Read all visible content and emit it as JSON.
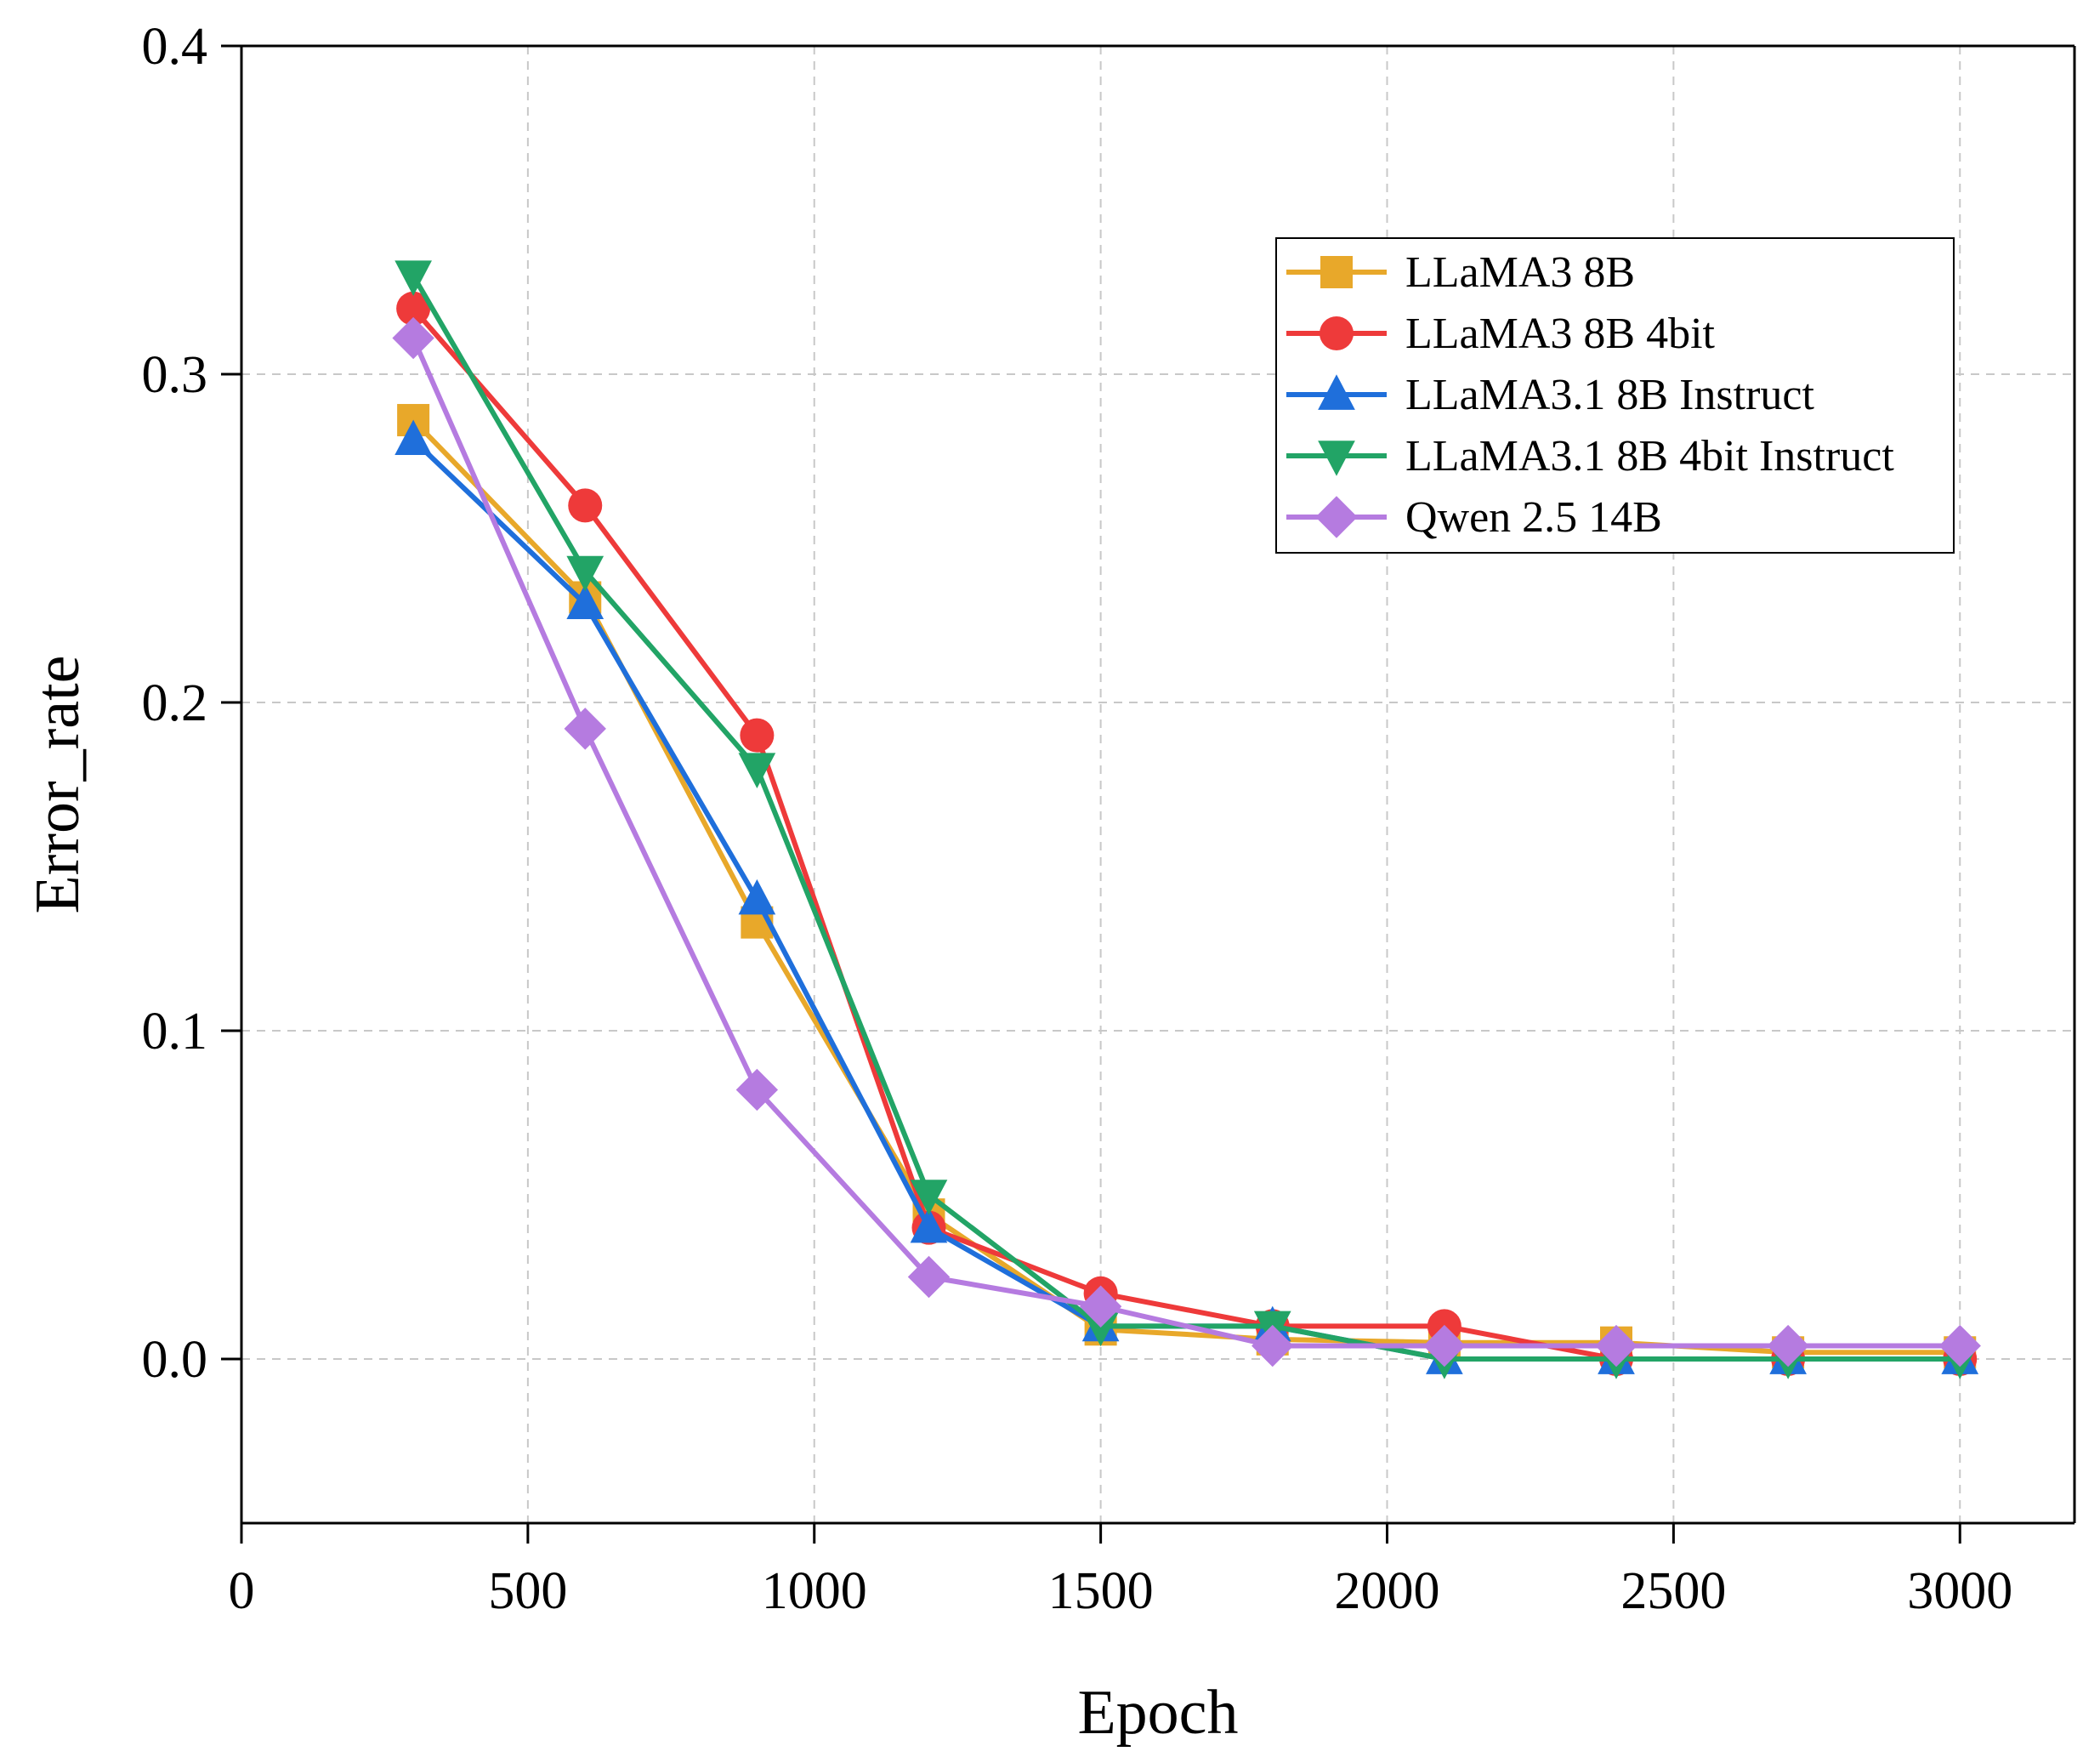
{
  "chart_data": {
    "type": "line",
    "title": "",
    "xlabel": "Epoch",
    "ylabel": "Error_rate",
    "xlim": [
      0,
      3200
    ],
    "ylim": [
      -0.05,
      0.4
    ],
    "xticks": [
      0,
      500,
      1000,
      1500,
      2000,
      2500,
      3000
    ],
    "yticks": [
      0.0,
      0.1,
      0.2,
      0.3,
      0.4
    ],
    "xtick_labels": [
      "0",
      "500",
      "1000",
      "1500",
      "2000",
      "2500",
      "3000"
    ],
    "ytick_labels": [
      "0.0",
      "0.1",
      "0.2",
      "0.3",
      "0.4"
    ],
    "grid": true,
    "legend_position": "top-right",
    "x": [
      300,
      600,
      900,
      1200,
      1500,
      1800,
      2100,
      2400,
      2700,
      3000
    ],
    "series": [
      {
        "name": "LLaMA3 8B",
        "color": "#E8A82A",
        "marker": "square",
        "values": [
          0.286,
          0.232,
          0.133,
          0.044,
          0.009,
          0.006,
          0.005,
          0.005,
          0.002,
          0.002
        ]
      },
      {
        "name": "LLaMA3 8B 4bit",
        "color": "#EE3A3A",
        "marker": "circle",
        "values": [
          0.32,
          0.26,
          0.19,
          0.04,
          0.02,
          0.01,
          0.01,
          0.0,
          0.0,
          0.0
        ]
      },
      {
        "name": "LLaMA3.1 8B Instruct",
        "color": "#1F6FDB",
        "marker": "triangle-up",
        "values": [
          0.28,
          0.23,
          0.14,
          0.04,
          0.01,
          0.01,
          0.0,
          0.0,
          0.0,
          0.0
        ]
      },
      {
        "name": "LLaMA3.1 8B 4bit Instruct",
        "color": "#22A466",
        "marker": "triangle-down",
        "values": [
          0.33,
          0.24,
          0.18,
          0.05,
          0.01,
          0.01,
          0.0,
          0.0,
          0.0,
          0.0
        ]
      },
      {
        "name": "Qwen 2.5 14B",
        "color": "#B57BE0",
        "marker": "diamond",
        "values": [
          0.311,
          0.192,
          0.082,
          0.025,
          0.016,
          0.004,
          0.004,
          0.004,
          0.004,
          0.004
        ]
      }
    ]
  }
}
